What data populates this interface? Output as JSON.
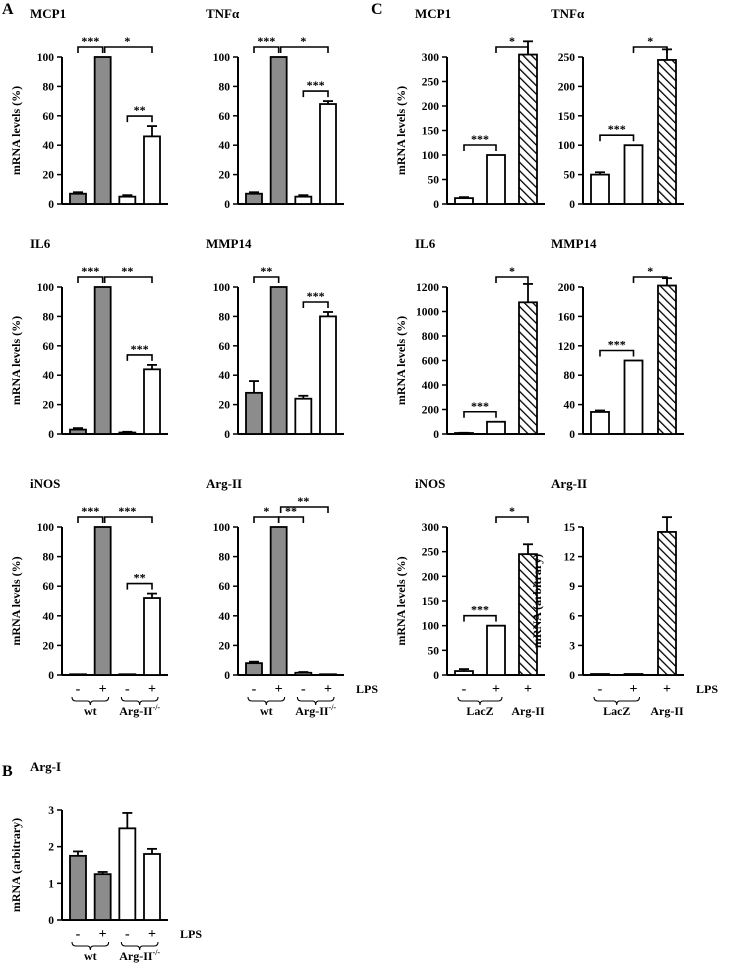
{
  "panel_labels": {
    "A": "A",
    "B": "B",
    "C": "C"
  },
  "colors": {
    "gray": "#8c8c8c",
    "white": "#ffffff",
    "line": "#000000"
  },
  "chart_data": [
    {
      "id": "a1",
      "panel": "A",
      "type": "bar",
      "title": "MCP1",
      "ylabel": "mRNA levels (%)",
      "ylim": [
        0,
        100
      ],
      "ticks": [
        0,
        20,
        40,
        60,
        80,
        100
      ],
      "categories": [
        "wt -",
        "wt +",
        "Arg-II-/- -",
        "Arg-II-/- +"
      ],
      "values": [
        7,
        100,
        5,
        46
      ],
      "errors": [
        1,
        0,
        1,
        7
      ],
      "fills": [
        "gray",
        "gray",
        "white",
        "white"
      ],
      "significance": [
        {
          "from": 0,
          "to": 1,
          "label": "***"
        },
        {
          "from": 1,
          "to": 3,
          "label": "*"
        },
        {
          "from": 2,
          "to": 3,
          "label": "**"
        }
      ]
    },
    {
      "id": "a2",
      "panel": "A",
      "type": "bar",
      "title": "TNFα",
      "ylabel": "",
      "ylim": [
        0,
        100
      ],
      "ticks": [
        0,
        20,
        40,
        60,
        80,
        100
      ],
      "categories": [
        "wt -",
        "wt +",
        "Arg-II-/- -",
        "Arg-II-/- +"
      ],
      "values": [
        7,
        100,
        5,
        68
      ],
      "errors": [
        1,
        0,
        1,
        2
      ],
      "fills": [
        "gray",
        "gray",
        "white",
        "white"
      ],
      "significance": [
        {
          "from": 0,
          "to": 1,
          "label": "***"
        },
        {
          "from": 1,
          "to": 3,
          "label": "*"
        },
        {
          "from": 2,
          "to": 3,
          "label": "***"
        }
      ]
    },
    {
      "id": "a3",
      "panel": "A",
      "type": "bar",
      "title": "IL6",
      "ylabel": "mRNA levels (%)",
      "ylim": [
        0,
        100
      ],
      "ticks": [
        0,
        20,
        40,
        60,
        80,
        100
      ],
      "categories": [
        "wt -",
        "wt +",
        "Arg-II-/- -",
        "Arg-II-/- +"
      ],
      "values": [
        3,
        100,
        1,
        44
      ],
      "errors": [
        1,
        0,
        0.5,
        3
      ],
      "fills": [
        "gray",
        "gray",
        "white",
        "white"
      ],
      "significance": [
        {
          "from": 0,
          "to": 1,
          "label": "***"
        },
        {
          "from": 1,
          "to": 3,
          "label": "**"
        },
        {
          "from": 2,
          "to": 3,
          "label": "***"
        }
      ]
    },
    {
      "id": "a4",
      "panel": "A",
      "type": "bar",
      "title": "MMP14",
      "ylabel": "",
      "ylim": [
        0,
        100
      ],
      "ticks": [
        0,
        20,
        40,
        60,
        80,
        100
      ],
      "categories": [
        "wt -",
        "wt +",
        "Arg-II-/- -",
        "Arg-II-/- +"
      ],
      "values": [
        28,
        100,
        24,
        80
      ],
      "errors": [
        8,
        0,
        2,
        3
      ],
      "fills": [
        "gray",
        "gray",
        "white",
        "white"
      ],
      "significance": [
        {
          "from": 0,
          "to": 1,
          "label": "**"
        },
        {
          "from": 2,
          "to": 3,
          "label": "***"
        }
      ]
    },
    {
      "id": "a5",
      "panel": "A",
      "type": "bar",
      "title": "iNOS",
      "ylabel": "mRNA levels (%)",
      "ylim": [
        0,
        100
      ],
      "ticks": [
        0,
        20,
        40,
        60,
        80,
        100
      ],
      "categories": [
        "wt -",
        "wt +",
        "Arg-II-/- -",
        "Arg-II-/- +"
      ],
      "values": [
        0.5,
        100,
        0.5,
        52
      ],
      "errors": [
        0,
        0,
        0,
        3
      ],
      "fills": [
        "gray",
        "gray",
        "white",
        "white"
      ],
      "significance": [
        {
          "from": 0,
          "to": 1,
          "label": "***"
        },
        {
          "from": 1,
          "to": 3,
          "label": "***"
        },
        {
          "from": 2,
          "to": 3,
          "label": "**"
        }
      ]
    },
    {
      "id": "a6",
      "panel": "A",
      "type": "bar",
      "title": "Arg-II",
      "ylabel": "",
      "ylim": [
        0,
        100
      ],
      "ticks": [
        0,
        20,
        40,
        60,
        80,
        100
      ],
      "categories": [
        "wt -",
        "wt +",
        "Arg-II-/- -",
        "Arg-II-/- +"
      ],
      "values": [
        8,
        100,
        1.5,
        0.5
      ],
      "errors": [
        1,
        0,
        0.5,
        0
      ],
      "fills": [
        "gray",
        "gray",
        "white",
        "white"
      ],
      "significance": [
        {
          "from": 0,
          "to": 1,
          "label": "*"
        },
        {
          "from": 1,
          "to": 2,
          "label": "**"
        },
        {
          "from": 1,
          "to": 3,
          "label": "**"
        }
      ]
    },
    {
      "id": "b1",
      "panel": "B",
      "type": "bar",
      "title": "Arg-I",
      "ylabel": "mRNA (arbitrary)",
      "ylim": [
        0,
        3
      ],
      "ticks": [
        0,
        1,
        2,
        3
      ],
      "categories": [
        "wt -",
        "wt +",
        "Arg-II-/- -",
        "Arg-II-/- +"
      ],
      "values": [
        1.75,
        1.25,
        2.5,
        1.8
      ],
      "errors": [
        0.12,
        0.06,
        0.42,
        0.14
      ],
      "fills": [
        "gray",
        "gray",
        "white",
        "white"
      ],
      "significance": []
    },
    {
      "id": "c1",
      "panel": "C",
      "type": "bar",
      "title": "MCP1",
      "ylabel": "mRNA levels (%)",
      "ylim": [
        0,
        300
      ],
      "ticks": [
        0,
        50,
        100,
        150,
        200,
        250,
        300
      ],
      "categories": [
        "LacZ -",
        "LacZ +",
        "Arg-II +"
      ],
      "values": [
        12,
        100,
        305
      ],
      "errors": [
        2,
        0,
        27
      ],
      "fills": [
        "white",
        "white",
        "hatch"
      ],
      "significance": [
        {
          "from": 0,
          "to": 1,
          "label": "***"
        },
        {
          "from": 1,
          "to": 2,
          "label": "*"
        }
      ]
    },
    {
      "id": "c2",
      "panel": "C",
      "type": "bar",
      "title": "TNFα",
      "ylabel": "",
      "ylim": [
        0,
        250
      ],
      "ticks": [
        0,
        50,
        100,
        150,
        200,
        250
      ],
      "categories": [
        "LacZ -",
        "LacZ +",
        "Arg-II +"
      ],
      "values": [
        50,
        100,
        245
      ],
      "errors": [
        4,
        0,
        18
      ],
      "fills": [
        "white",
        "white",
        "hatch"
      ],
      "significance": [
        {
          "from": 0,
          "to": 1,
          "label": "***"
        },
        {
          "from": 1,
          "to": 2,
          "label": "*"
        }
      ]
    },
    {
      "id": "c3",
      "panel": "C",
      "type": "bar",
      "title": "IL6",
      "ylabel": "mRNA levels (%)",
      "ylim": [
        0,
        1200
      ],
      "ticks": [
        0,
        200,
        400,
        600,
        800,
        1000,
        1200
      ],
      "categories": [
        "LacZ -",
        "LacZ +",
        "Arg-II +"
      ],
      "values": [
        8,
        100,
        1075
      ],
      "errors": [
        2,
        0,
        150
      ],
      "fills": [
        "white",
        "white",
        "hatch"
      ],
      "significance": [
        {
          "from": 0,
          "to": 1,
          "label": "***"
        },
        {
          "from": 1,
          "to": 2,
          "label": "*"
        }
      ]
    },
    {
      "id": "c4",
      "panel": "C",
      "type": "bar",
      "title": "MMP14",
      "ylabel": "",
      "ylim": [
        0,
        200
      ],
      "ticks": [
        0,
        40,
        80,
        120,
        160,
        200
      ],
      "categories": [
        "LacZ -",
        "LacZ +",
        "Arg-II +"
      ],
      "values": [
        30,
        100,
        202
      ],
      "errors": [
        2,
        0,
        10
      ],
      "fills": [
        "white",
        "white",
        "hatch"
      ],
      "significance": [
        {
          "from": 0,
          "to": 1,
          "label": "***"
        },
        {
          "from": 1,
          "to": 2,
          "label": "*"
        }
      ]
    },
    {
      "id": "c5",
      "panel": "C",
      "type": "bar",
      "title": "iNOS",
      "ylabel": "mRNA levels (%)",
      "ylim": [
        0,
        300
      ],
      "ticks": [
        0,
        50,
        100,
        150,
        200,
        250,
        300
      ],
      "categories": [
        "LacZ -",
        "LacZ +",
        "Arg-II +"
      ],
      "values": [
        8,
        100,
        245
      ],
      "errors": [
        4,
        0,
        20
      ],
      "fills": [
        "white",
        "white",
        "hatch"
      ],
      "significance": [
        {
          "from": 0,
          "to": 1,
          "label": "***"
        },
        {
          "from": 1,
          "to": 2,
          "label": "*"
        }
      ]
    },
    {
      "id": "c6",
      "panel": "C",
      "type": "bar",
      "title": "Arg-II",
      "ylabel": "mRNA (arbitrary)",
      "ylim": [
        0,
        15
      ],
      "ticks": [
        0,
        3,
        6,
        9,
        12,
        15
      ],
      "categories": [
        "LacZ -",
        "LacZ +",
        "Arg-II +"
      ],
      "values": [
        0.1,
        0.1,
        14.5
      ],
      "errors": [
        0,
        0,
        1.5
      ],
      "fills": [
        "white",
        "white",
        "hatch"
      ],
      "significance": []
    }
  ],
  "x_annotations": {
    "minus": "-",
    "plus": "+",
    "lps": "LPS",
    "wt": "wt",
    "arg2_ko": "Arg-II",
    "arg2_ko_sup": "-/-",
    "lacz": "LacZ",
    "arg2": "Arg-II"
  }
}
